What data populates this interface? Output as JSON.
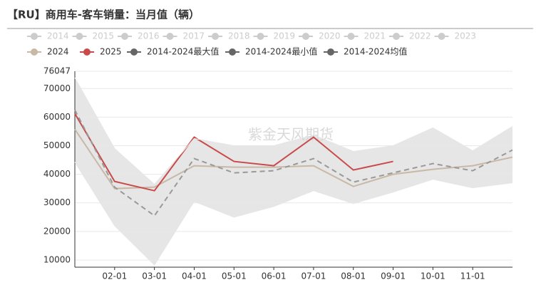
{
  "chart_data": {
    "type": "line",
    "title": "【RU】商用车-客车销量：当月值（辆）",
    "watermark": "紫金天风期货",
    "categories": [
      null,
      "02-01",
      "03-01",
      "04-01",
      "05-01",
      "06-01",
      "07-01",
      "08-01",
      "09-01",
      "10-01",
      "11-01",
      null
    ],
    "ylim": [
      7500,
      76047
    ],
    "yticks": [
      10000,
      20000,
      30000,
      40000,
      50000,
      60000,
      70000,
      76047
    ],
    "grid": true,
    "band_color": "#e6e6e6",
    "series": [
      {
        "name": "2014",
        "color": "#cccccc",
        "visible": false,
        "values": [
          null,
          null,
          null,
          null,
          null,
          null,
          null,
          null,
          null,
          null,
          null,
          null
        ]
      },
      {
        "name": "2015",
        "color": "#cccccc",
        "visible": false,
        "values": [
          null,
          null,
          null,
          null,
          null,
          null,
          null,
          null,
          null,
          null,
          null,
          null
        ]
      },
      {
        "name": "2016",
        "color": "#cccccc",
        "visible": false,
        "values": [
          null,
          null,
          null,
          null,
          null,
          null,
          null,
          null,
          null,
          null,
          null,
          null
        ]
      },
      {
        "name": "2017",
        "color": "#cccccc",
        "visible": false,
        "values": [
          null,
          null,
          null,
          null,
          null,
          null,
          null,
          null,
          null,
          null,
          null,
          null
        ]
      },
      {
        "name": "2018",
        "color": "#cccccc",
        "visible": false,
        "values": [
          null,
          null,
          null,
          null,
          null,
          null,
          null,
          null,
          null,
          null,
          null,
          null
        ]
      },
      {
        "name": "2019",
        "color": "#cccccc",
        "visible": false,
        "values": [
          null,
          null,
          null,
          null,
          null,
          null,
          null,
          null,
          null,
          null,
          null,
          null
        ]
      },
      {
        "name": "2020",
        "color": "#cccccc",
        "visible": false,
        "values": [
          null,
          null,
          null,
          null,
          null,
          null,
          null,
          null,
          null,
          null,
          null,
          null
        ]
      },
      {
        "name": "2021",
        "color": "#cccccc",
        "visible": false,
        "values": [
          null,
          null,
          null,
          null,
          null,
          null,
          null,
          null,
          null,
          null,
          null,
          null
        ]
      },
      {
        "name": "2022",
        "color": "#cccccc",
        "visible": false,
        "values": [
          null,
          null,
          null,
          null,
          null,
          null,
          null,
          null,
          null,
          null,
          null,
          null
        ]
      },
      {
        "name": "2023",
        "color": "#cccccc",
        "visible": false,
        "values": [
          null,
          null,
          null,
          null,
          null,
          null,
          null,
          null,
          null,
          null,
          null,
          null
        ]
      },
      {
        "name": "2024",
        "color": "#c8b8a6",
        "values": [
          55750,
          35000,
          35500,
          43000,
          42500,
          42500,
          43000,
          35750,
          40000,
          41750,
          43000,
          46000
        ]
      },
      {
        "name": "2025",
        "color": "#c94a4a",
        "values": [
          61250,
          37500,
          34250,
          53000,
          44500,
          43000,
          53000,
          41500,
          44500,
          null,
          null,
          null
        ]
      },
      {
        "name": "2014-2024最大值",
        "color": "#666666",
        "kind": "band-max",
        "values": [
          73750,
          49000,
          36500,
          52500,
          50000,
          50000,
          53750,
          48000,
          50000,
          56250,
          48250,
          56750
        ]
      },
      {
        "name": "2014-2024最小值",
        "color": "#666666",
        "kind": "band-min",
        "values": [
          44250,
          22000,
          8250,
          30500,
          25000,
          28750,
          34250,
          29750,
          33750,
          38250,
          35250,
          37000
        ]
      },
      {
        "name": "2014-2024均值",
        "color": "#999999",
        "legend_color": "#666666",
        "dashed": true,
        "values": [
          62500,
          35500,
          25500,
          45500,
          40500,
          41250,
          45500,
          37250,
          40500,
          43750,
          41250,
          48500
        ]
      }
    ]
  }
}
